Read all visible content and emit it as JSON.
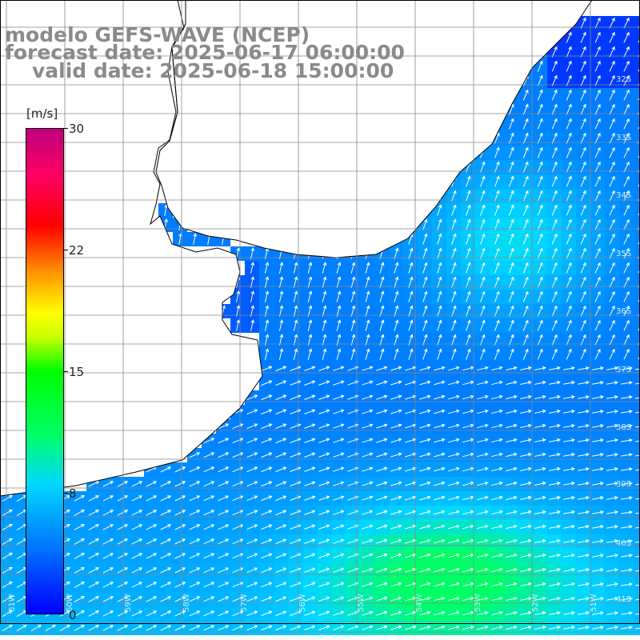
{
  "header": {
    "line1": "modelo GEFS-WAVE (NCEP)",
    "line2": "forecast date: 2025-06-17 06:00:00",
    "line3": "valid date: 2025-06-18 15:00:00"
  },
  "colorbar": {
    "units": "[m/s]",
    "ticks": [
      "30",
      "22",
      "15",
      "8",
      "0"
    ],
    "colors": [
      "#0000ff",
      "#0070ff",
      "#00d8ff",
      "#00ff66",
      "#00ff00",
      "#ffff00",
      "#ff9900",
      "#ff0000",
      "#c00080"
    ]
  },
  "map": {
    "lat_labels": [
      "32S",
      "33S",
      "34S",
      "35S",
      "36S",
      "37S",
      "38S",
      "39S",
      "40S",
      "41S"
    ],
    "lon_labels": [
      "61W",
      "60W",
      "59W",
      "58W",
      "57W",
      "56W",
      "55W",
      "54W",
      "53W",
      "52W",
      "51W"
    ],
    "ocean_color": "#1a8cff",
    "land_color": "#ffffff",
    "coast_color": "#000000",
    "arrow_color": "#ffffff"
  }
}
